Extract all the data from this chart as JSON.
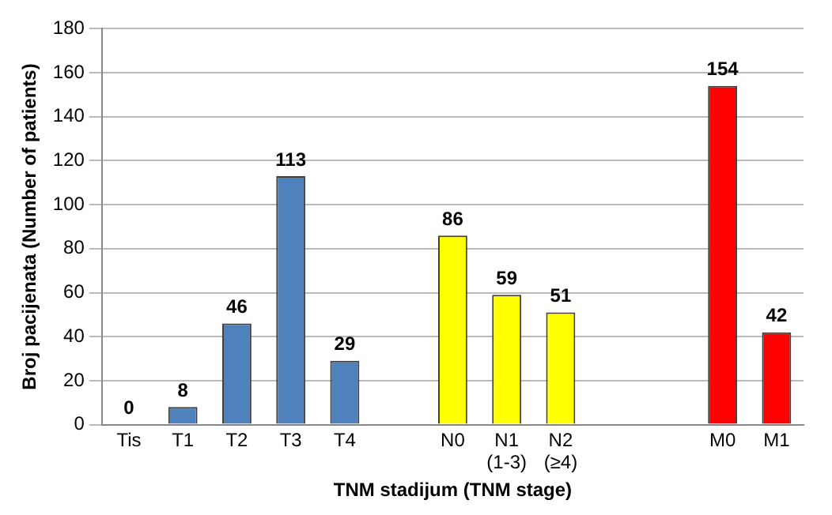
{
  "chart_data": {
    "type": "bar",
    "xlabel": "TNM stadijum (TNM stage)",
    "ylabel": "Broj pacijenata (Number of patients)",
    "categories": [
      "Tis",
      "T1",
      "T2",
      "T3",
      "T4",
      null,
      "N0",
      "N1 (1-3)",
      "N2 (≥4)",
      null,
      null,
      "M0",
      "M1"
    ],
    "values": [
      0,
      8,
      46,
      113,
      29,
      null,
      86,
      59,
      51,
      null,
      null,
      154,
      42
    ],
    "colors": [
      "#4f81bd",
      "#4f81bd",
      "#4f81bd",
      "#4f81bd",
      "#4f81bd",
      null,
      "#ffff00",
      "#ffff00",
      "#ffff00",
      null,
      null,
      "#ff0000",
      "#ff0000"
    ],
    "ylim": [
      0,
      180
    ],
    "yticks": [
      0,
      20,
      40,
      60,
      80,
      100,
      120,
      140,
      160,
      180
    ],
    "grid": "y",
    "data_labels": true,
    "legend": false
  }
}
